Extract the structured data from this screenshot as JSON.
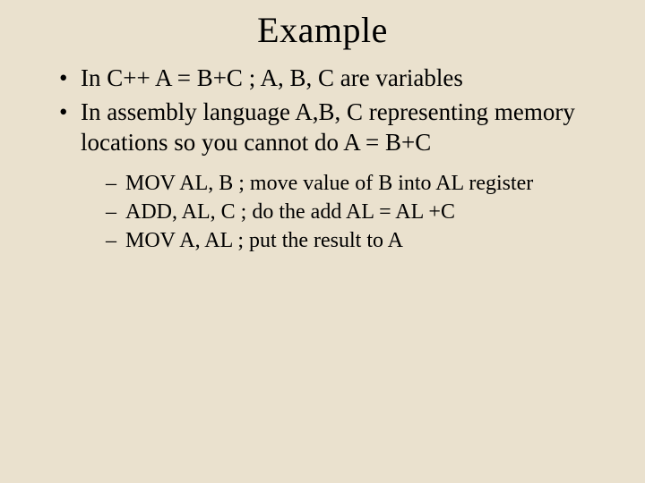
{
  "slide": {
    "title": "Example",
    "background_color": "#eae1ce",
    "text_color": "#000000",
    "font_family": "Times New Roman",
    "title_fontsize": 40,
    "bullet_fontsize": 27,
    "subbullet_fontsize": 24,
    "bullets": [
      "In C++ A = B+C ; A, B, C are variables",
      "In assembly language A,B, C representing memory locations so you cannot do A = B+C"
    ],
    "sub_bullets": [
      "MOV AL, B   ; move value of B into AL register",
      "ADD, AL, C ; do the add AL = AL +C",
      "MOV A, AL  ; put the result to A"
    ]
  }
}
